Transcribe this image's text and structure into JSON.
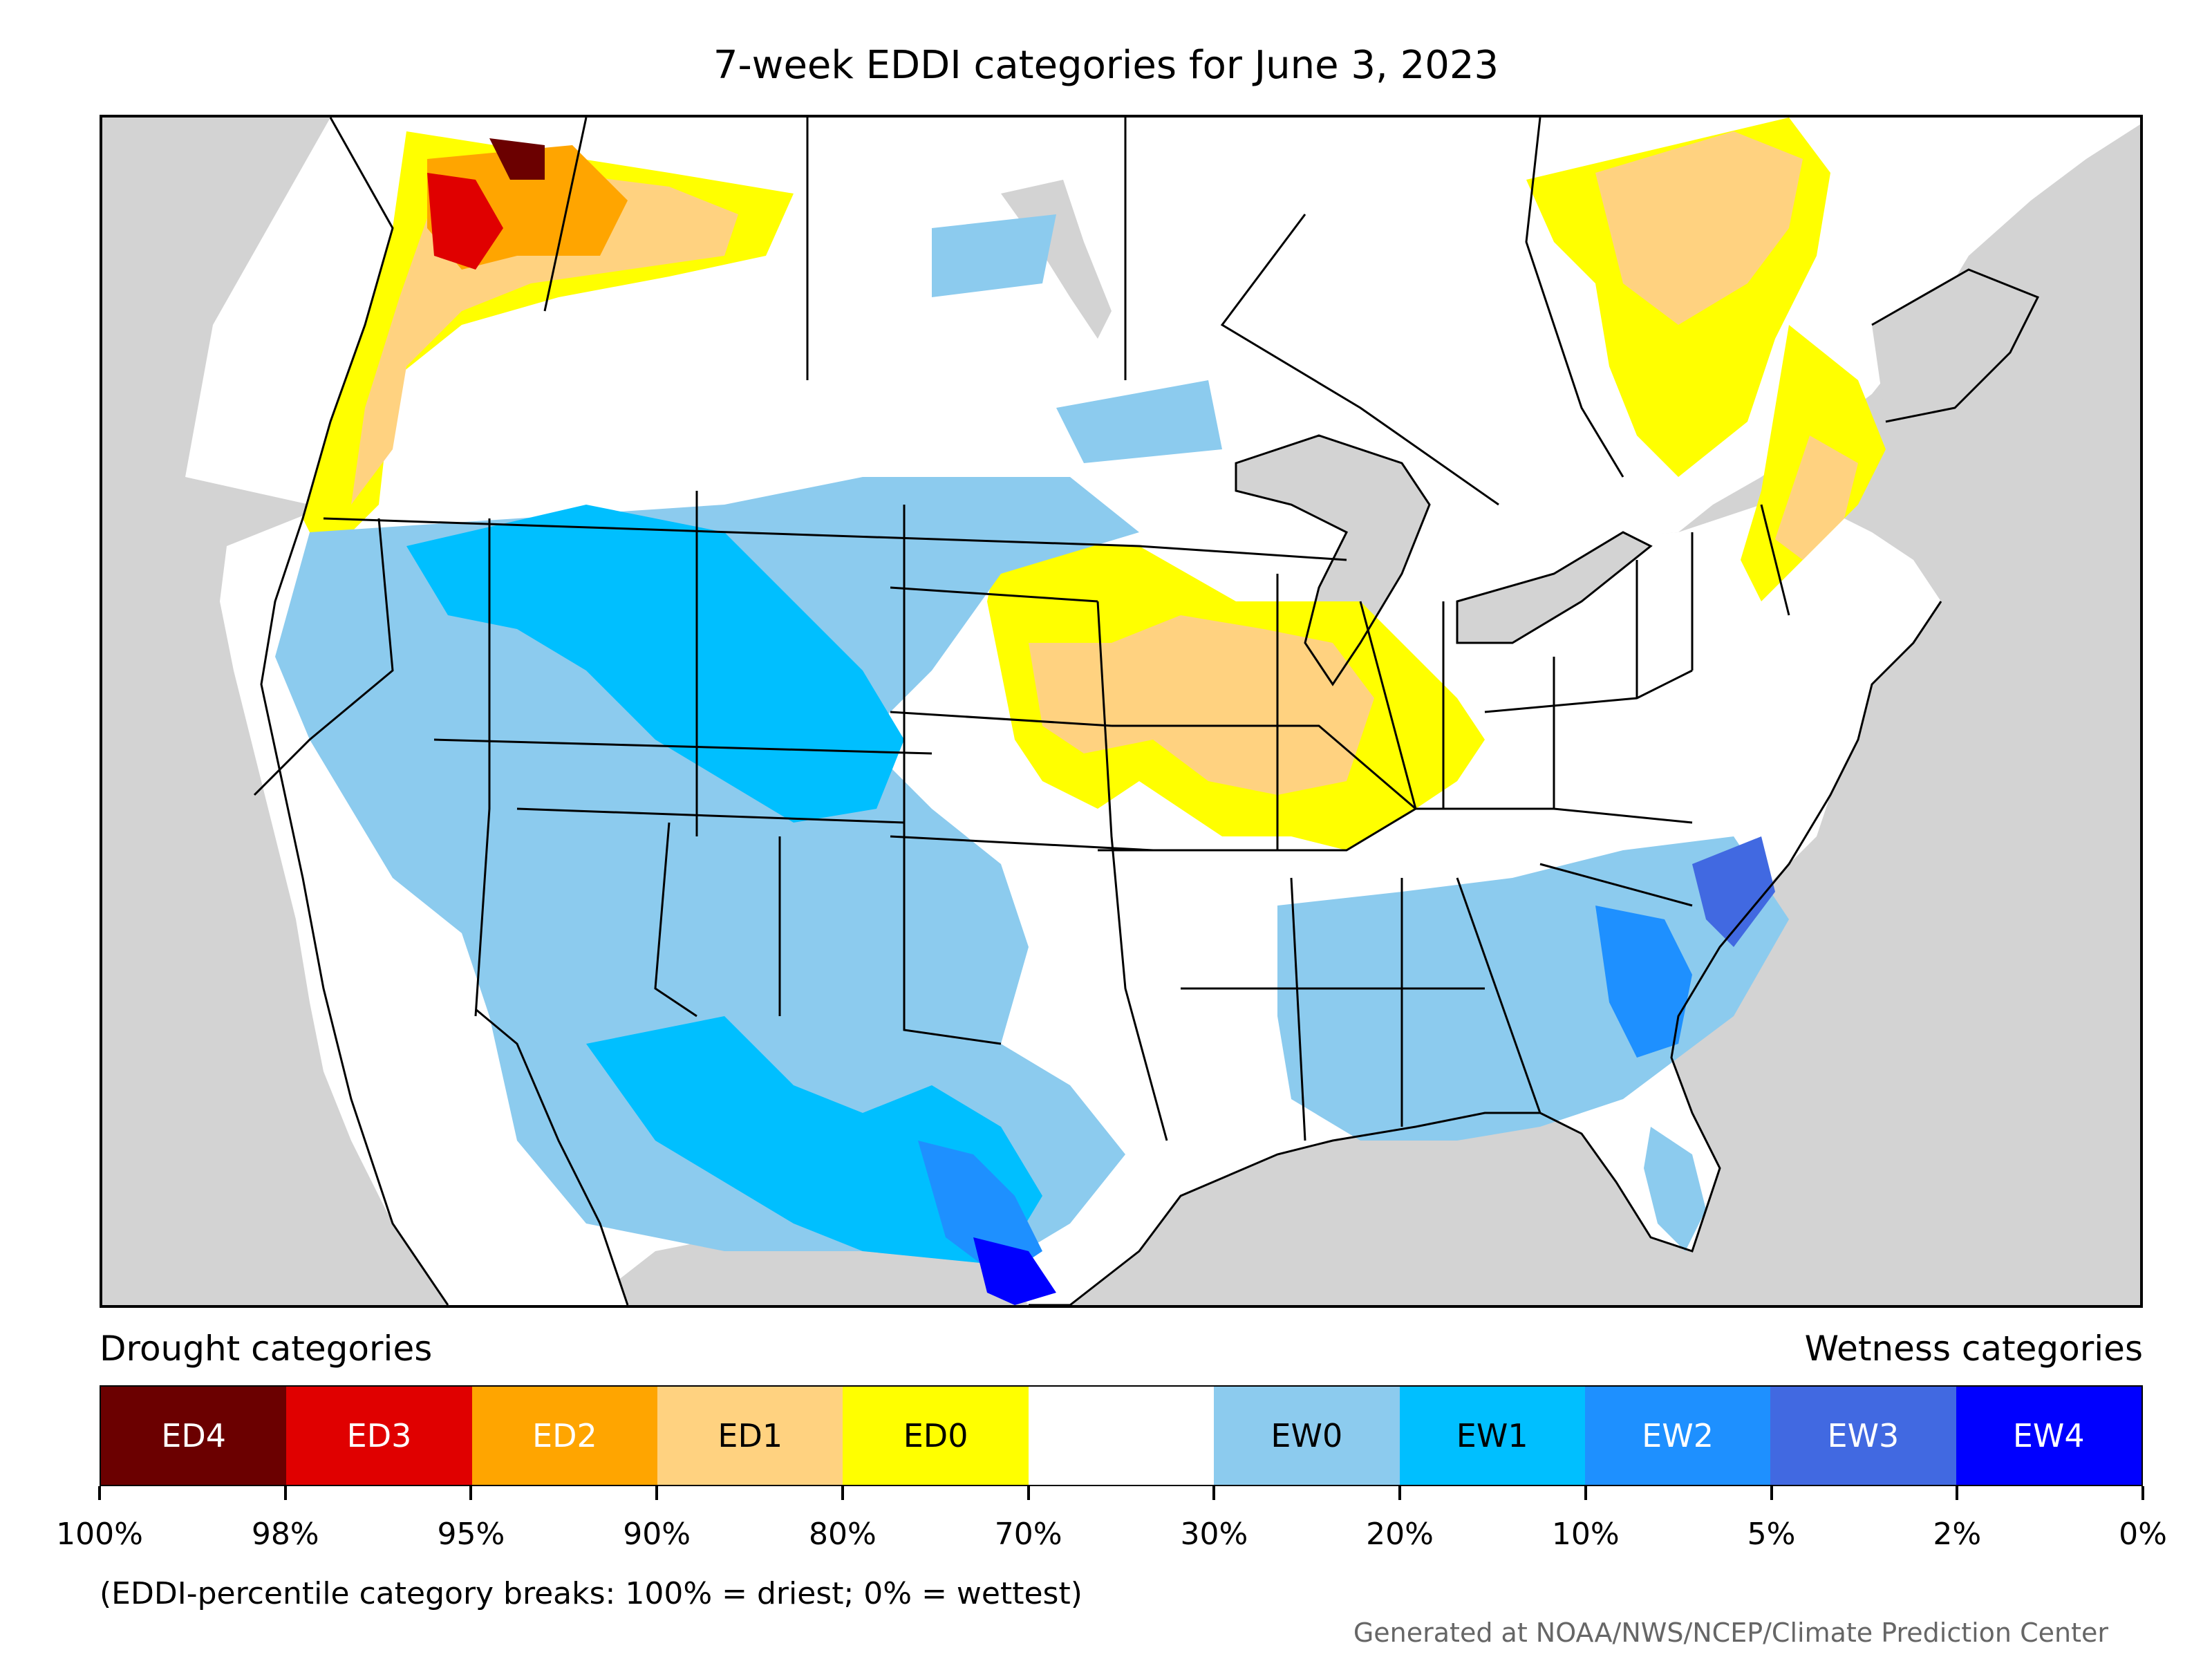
{
  "title": "7-week EDDI categories for June 3, 2023",
  "legend": {
    "drought_heading": "Drought categories",
    "wetness_heading": "Wetness categories",
    "categories": [
      {
        "label": "ED4",
        "color": "#6b0000",
        "text_color": "#ffffff"
      },
      {
        "label": "ED3",
        "color": "#e00000",
        "text_color": "#ffffff"
      },
      {
        "label": "ED2",
        "color": "#ffa500",
        "text_color": "#ffffff"
      },
      {
        "label": "ED1",
        "color": "#ffd280",
        "text_color": "#000000"
      },
      {
        "label": "ED0",
        "color": "#ffff00",
        "text_color": "#000000"
      },
      {
        "label": "",
        "color": "#ffffff",
        "text_color": "#000000"
      },
      {
        "label": "EW0",
        "color": "#8ccbee",
        "text_color": "#000000"
      },
      {
        "label": "EW1",
        "color": "#00bfff",
        "text_color": "#000000"
      },
      {
        "label": "EW2",
        "color": "#1e90ff",
        "text_color": "#ffffff"
      },
      {
        "label": "EW3",
        "color": "#4169e1",
        "text_color": "#ffffff"
      },
      {
        "label": "EW4",
        "color": "#0000ff",
        "text_color": "#ffffff"
      }
    ],
    "tick_labels": [
      "100%",
      "98%",
      "95%",
      "90%",
      "80%",
      "70%",
      "30%",
      "20%",
      "10%",
      "5%",
      "2%",
      "0%"
    ]
  },
  "note": "(EDDI-percentile category breaks: 100% = driest; 0% = wettest)",
  "credit": "Generated at NOAA/NWS/NCEP/Climate Prediction Center"
}
